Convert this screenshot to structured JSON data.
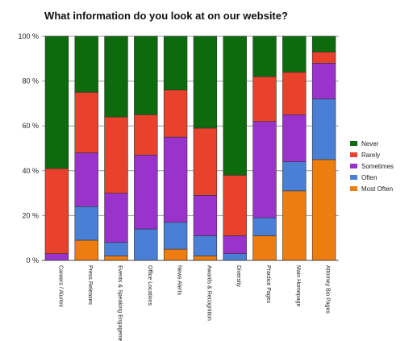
{
  "chart_data": {
    "type": "bar",
    "stacked": true,
    "percent": true,
    "title": "What information do you look at on our website?",
    "xlabel": "",
    "ylabel": "",
    "ylim": [
      0,
      100
    ],
    "yticks": [
      "0 %",
      "20 %",
      "40 %",
      "60 %",
      "80 %",
      "100 %"
    ],
    "grid": true,
    "legend_position": "right",
    "categories": [
      "Careers / Alumni",
      "Press Releases",
      "Events & Speaking Engagements",
      "Office Locations",
      "News Alerts",
      "Awards & Recognition",
      "Diversity",
      "Practice Pages",
      "Main Homepage",
      "Attorney Bio Pages"
    ],
    "series": [
      {
        "name": "Most Often",
        "color": "#ed7d0e",
        "values": [
          0,
          9,
          2,
          0,
          5,
          2,
          0,
          11,
          31,
          45
        ]
      },
      {
        "name": "Often",
        "color": "#4a7fd6",
        "values": [
          0,
          15,
          6,
          14,
          12,
          9,
          3,
          8,
          13,
          27
        ]
      },
      {
        "name": "Sometimes",
        "color": "#9933cc",
        "values": [
          3,
          24,
          22,
          33,
          38,
          18,
          8,
          43,
          21,
          16
        ]
      },
      {
        "name": "Rarely",
        "color": "#e8412c",
        "values": [
          38,
          27,
          34,
          18,
          21,
          30,
          27,
          20,
          19,
          5
        ]
      },
      {
        "name": "Never",
        "color": "#0d6b0d",
        "values": [
          59,
          25,
          36,
          35,
          24,
          41,
          62,
          18,
          16,
          7
        ]
      }
    ],
    "legend_order": [
      "Never",
      "Rarely",
      "Sometimes",
      "Often",
      "Most Often"
    ]
  }
}
